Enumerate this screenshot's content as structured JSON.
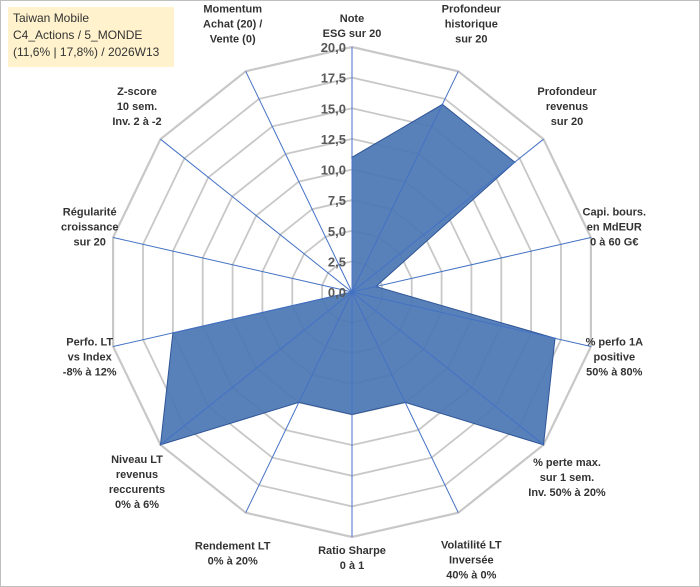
{
  "header": {
    "line1": "Taiwan Mobile",
    "line2": "C4_Actions / 5_MONDE",
    "line3": "(11,6% | 17,8%) / 2026W13"
  },
  "colors": {
    "grid": "#c8c8c8",
    "axis": "#4472c4",
    "fill": "#4a76b4",
    "fill_stroke": "#2f5597",
    "title_bg": "#fff2cc"
  },
  "chart_data": {
    "type": "radar",
    "rmin": 0,
    "rmax": 20,
    "step": 2.5,
    "tick_labels": [
      "0,0",
      "2,5",
      "5,0",
      "7,5",
      "10,0",
      "12,5",
      "15,0",
      "17,5",
      "20,0"
    ],
    "axes": [
      {
        "lines": [
          "Note",
          "ESG sur 20"
        ],
        "value": 11
      },
      {
        "lines": [
          "Profondeur",
          "historique",
          "sur 20"
        ],
        "value": 17
      },
      {
        "lines": [
          "Profondeur",
          "revenus",
          "sur 20"
        ],
        "value": 17
      },
      {
        "lines": [
          "Capi. bours.",
          "en MdEUR",
          "0 à 60 G€"
        ],
        "value": 2
      },
      {
        "lines": [
          "% perfo 1A",
          "positive",
          "50% à 80%"
        ],
        "value": 17
      },
      {
        "lines": [
          "% perte max.",
          "sur 1 sem.",
          "Inv. 50% à 20%"
        ],
        "value": 20
      },
      {
        "lines": [
          "Volatilité LT",
          "Inversée",
          "40% à 0%"
        ],
        "value": 10
      },
      {
        "lines": [
          "Ratio Sharpe",
          "0 à 1"
        ],
        "value": 10
      },
      {
        "lines": [
          "Rendement LT",
          "0% à 20%"
        ],
        "value": 10
      },
      {
        "lines": [
          "Niveau LT",
          "revenus",
          "reccurents",
          "0% à 6%"
        ],
        "value": 20
      },
      {
        "lines": [
          "Perfo. LT",
          "vs Index",
          "-8% à 12%"
        ],
        "value": 15
      },
      {
        "lines": [
          "Régularité",
          "croissance",
          "sur 20"
        ],
        "value": 0
      },
      {
        "lines": [
          "Z-score",
          "10 sem.",
          "Inv. 2 à -2"
        ],
        "value": 0
      },
      {
        "lines": [
          "Momentum",
          "Achat (20) /",
          "Vente (0)"
        ],
        "value": 0
      }
    ]
  }
}
